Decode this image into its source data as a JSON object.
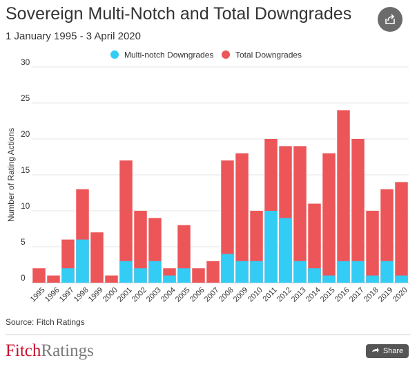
{
  "header": {
    "title": "Sovereign Multi-Notch and Total Downgrades",
    "subtitle": "1 January 1995 - 3 April 2020"
  },
  "chart_data": {
    "type": "bar",
    "stacked": true,
    "title": "Sovereign Multi-Notch and Total Downgrades",
    "subtitle": "1 January 1995 - 3 April 2020",
    "xlabel": "",
    "ylabel": "Number of Rating Actions",
    "ylim": [
      0,
      30
    ],
    "yticks": [
      0,
      5,
      10,
      15,
      20,
      25,
      30
    ],
    "grid": true,
    "legend_position": "top-center",
    "categories": [
      "1995",
      "1996",
      "1997",
      "1998",
      "1999",
      "2000",
      "2001",
      "2002",
      "2003",
      "2004",
      "2005",
      "2006",
      "2007",
      "2008",
      "2009",
      "2010",
      "2011",
      "2012",
      "2013",
      "2014",
      "2015",
      "2016",
      "2017",
      "2018",
      "2019",
      "2020"
    ],
    "series": [
      {
        "name": "Multi-notch Downgrades",
        "color": "#33ccf5",
        "values": [
          0,
          0,
          2,
          6,
          0,
          0,
          3,
          2,
          3,
          1,
          2,
          0,
          0,
          4,
          3,
          3,
          10,
          9,
          3,
          2,
          1,
          3,
          3,
          1,
          3,
          1
        ]
      },
      {
        "name": "Total Downgrades",
        "color": "#ec5659",
        "values": [
          2,
          1,
          6,
          13,
          7,
          1,
          17,
          10,
          9,
          2,
          8,
          2,
          3,
          17,
          18,
          10,
          20,
          19,
          19,
          11,
          18,
          24,
          20,
          10,
          13,
          14
        ]
      }
    ]
  },
  "source": "Source: Fitch Ratings",
  "footer": {
    "logo_fitch": "Fitch",
    "logo_ratings": "Ratings",
    "share_label": "Share"
  },
  "colors": {
    "multi": "#33ccf5",
    "total": "#ec5659",
    "logo_red": "#c8102e",
    "logo_grey": "#7a7a7a"
  },
  "icons": {
    "share_circle": "share-icon",
    "share_button": "share-icon"
  }
}
